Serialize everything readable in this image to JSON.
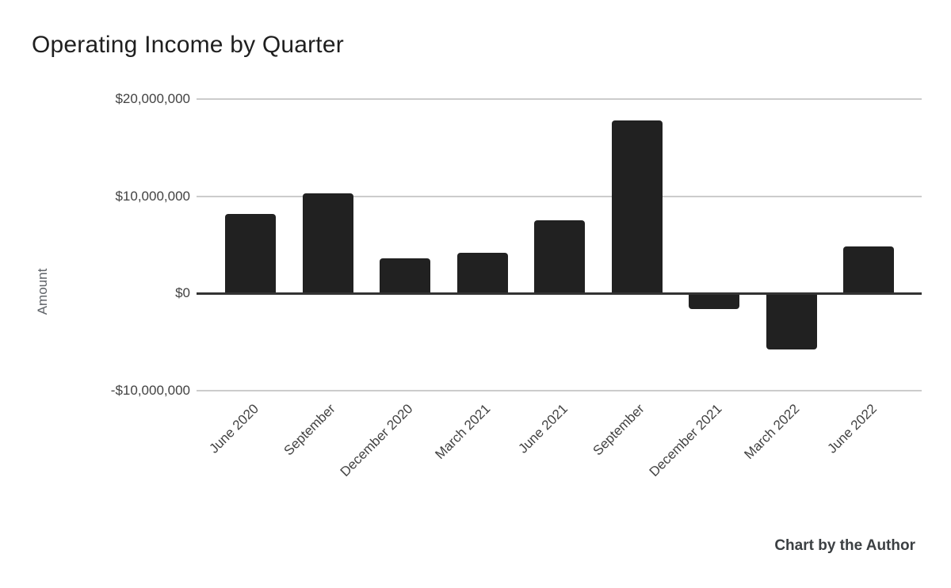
{
  "chart": {
    "title": "Operating Income by Quarter",
    "y_axis_label": "Amount",
    "attribution": "Chart by the Author"
  },
  "chart_data": {
    "type": "bar",
    "title": "Operating Income by Quarter",
    "xlabel": "",
    "ylabel": "Amount",
    "categories": [
      "June 2020",
      "September",
      "December 2020",
      "March 2021",
      "June 2021",
      "September",
      "December 2021",
      "March 2022",
      "June 2022"
    ],
    "values": [
      8200000,
      10300000,
      3600000,
      4200000,
      7500000,
      17800000,
      -1600000,
      -5800000,
      4800000
    ],
    "series": [
      {
        "name": "Operating Income",
        "values": [
          8200000,
          10300000,
          3600000,
          4200000,
          7500000,
          17800000,
          -1600000,
          -5800000,
          4800000
        ]
      }
    ],
    "y_ticks": [
      {
        "value": 20000000,
        "label": "$20,000,000"
      },
      {
        "value": 10000000,
        "label": "$10,000,000"
      },
      {
        "value": 0,
        "label": "$0"
      },
      {
        "value": -10000000,
        "label": "-$10,000,000"
      }
    ],
    "ylim": [
      -10000000,
      20000000
    ],
    "grid": true,
    "legend_position": "none",
    "x_label_rotation_deg": -45,
    "annotations": [
      "Chart by the Author"
    ]
  },
  "colors": {
    "bar": "#212121",
    "gridline": "#cccccc",
    "zero_line": "#333333",
    "title_text": "#1f1f1f",
    "axis_tick_text": "#424242",
    "y_axis_title_text": "#5f6368",
    "attribution_text": "#3c4043",
    "background": "#ffffff"
  }
}
